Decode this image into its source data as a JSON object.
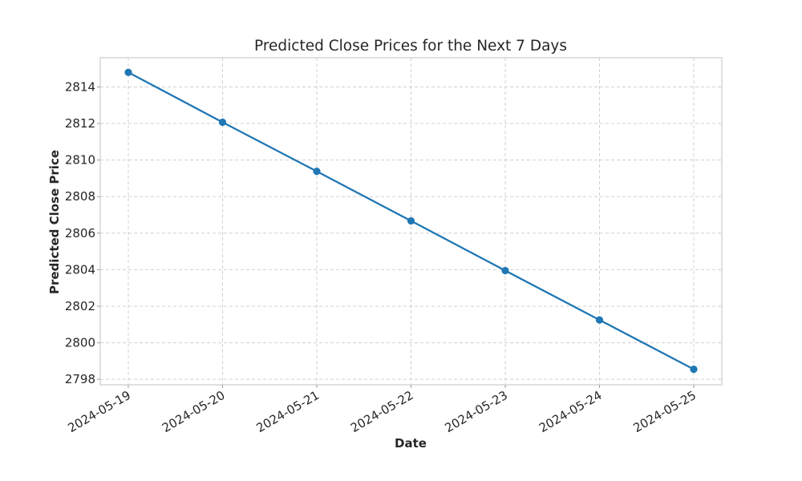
{
  "chart_data": {
    "type": "line",
    "title": "Predicted Close Prices for the Next 7 Days",
    "xlabel": "Date",
    "ylabel": "Predicted Close Price",
    "x": [
      "2024-05-19",
      "2024-05-20",
      "2024-05-21",
      "2024-05-22",
      "2024-05-23",
      "2024-05-24",
      "2024-05-25"
    ],
    "series": [
      {
        "values": [
          2814.8,
          2812.07,
          2809.38,
          2806.67,
          2803.95,
          2801.25,
          2798.55
        ]
      }
    ],
    "yticks": [
      2798,
      2800,
      2802,
      2804,
      2806,
      2808,
      2810,
      2812,
      2814
    ],
    "ylim": [
      2797.7,
      2815.6
    ],
    "grid": true,
    "legend": "none",
    "line_color": "#1f77b4",
    "marker": "circle"
  }
}
